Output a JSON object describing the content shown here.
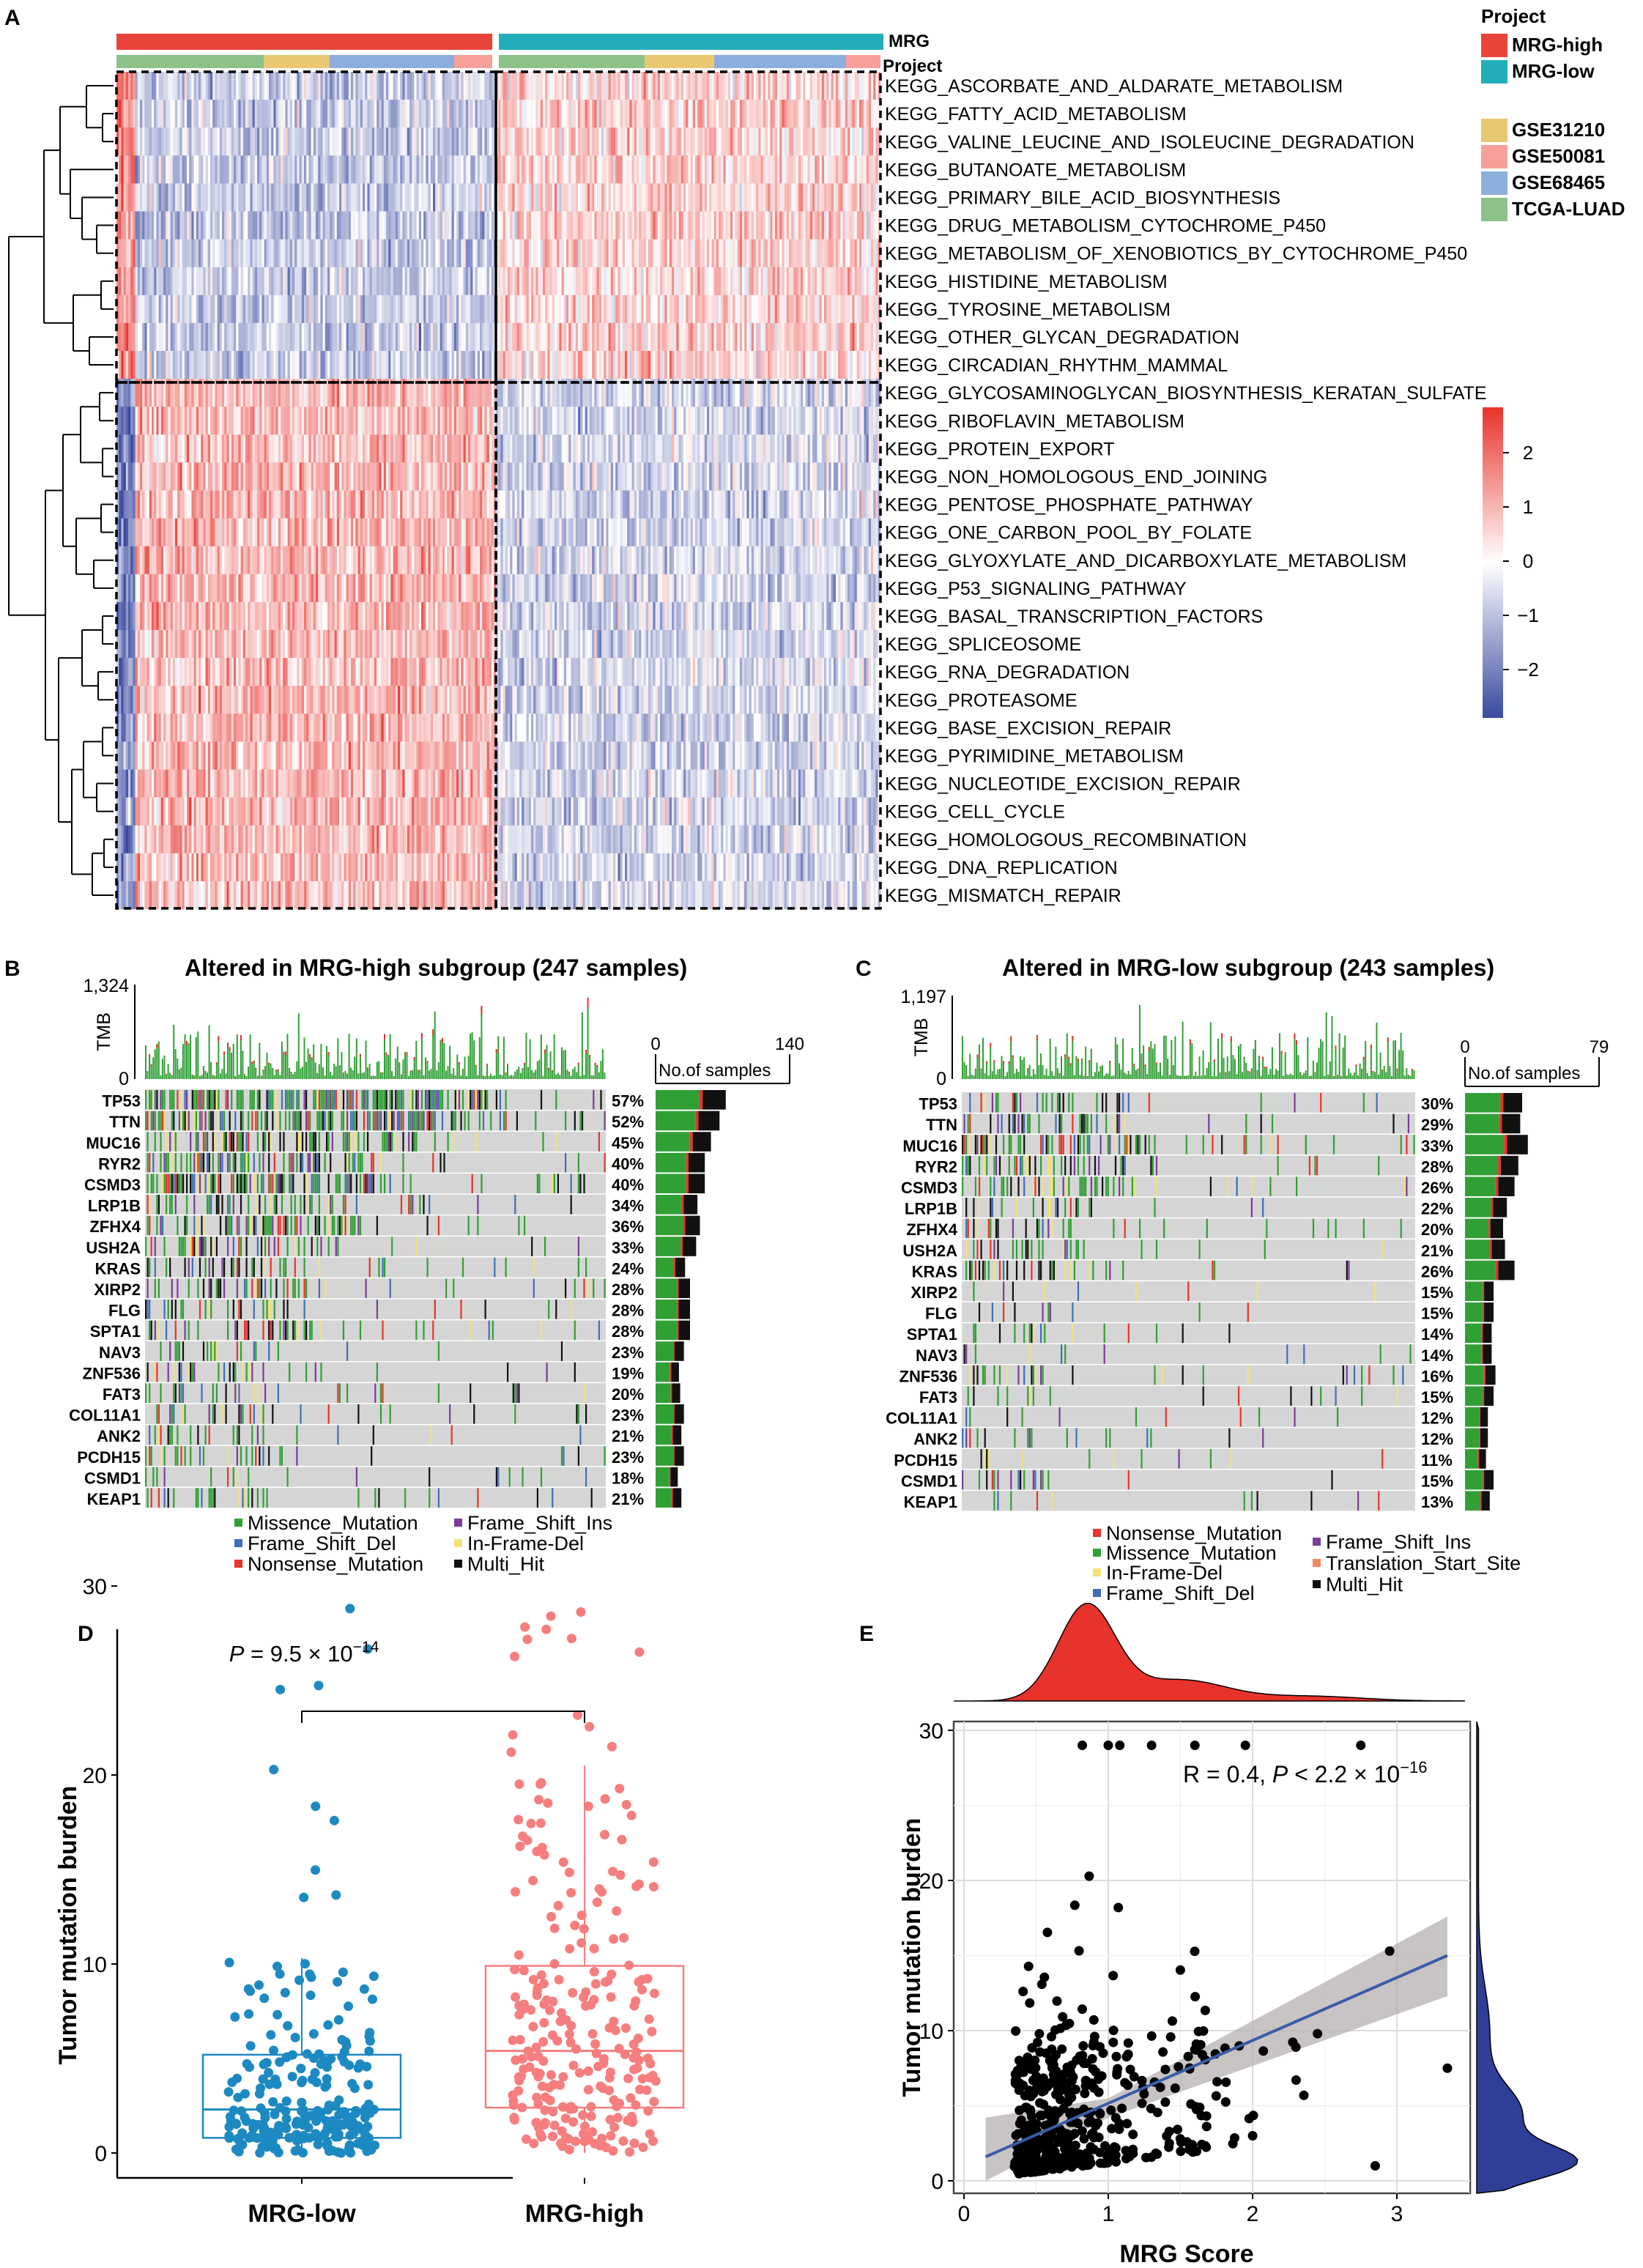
{
  "colors": {
    "mrg_high": "#e8443a",
    "mrg_low": "#22aeb9",
    "gse31210": "#e8c872",
    "gse50081": "#f7a09a",
    "gse68465": "#8caedd",
    "tcga_luad": "#8cc18a",
    "heat_red": "#e8332c",
    "heat_blue": "#3a4aa0",
    "missense": "#30a035",
    "frame_shift_del": "#3f6fb6",
    "nonsense": "#e8332c",
    "frame_shift_ins": "#7a3d99",
    "in_frame_del": "#f1e27a",
    "multi_hit": "#111111",
    "translation_start": "#f08a5d",
    "box_low": "#1d89c2",
    "box_high": "#f67e7f",
    "reg_line": "#3a5ca8",
    "density_top": "#e8332c",
    "density_right": "#2f3f97"
  },
  "chart_data": [
    {
      "panel": "A",
      "type": "heatmap",
      "title": "",
      "annotation_labels": [
        "MRG",
        "Project"
      ],
      "legend_title": "Project",
      "legend_groups": [
        "MRG-high",
        "MRG-low"
      ],
      "legend_projects": [
        "GSE31210",
        "GSE50081",
        "GSE68465",
        "TCGA-LUAD"
      ],
      "color_scale_ticks": [
        "2",
        "1",
        "0",
        "−1",
        "−2"
      ],
      "color_scale_values": [
        2,
        1,
        0,
        -1,
        -2
      ],
      "rows": [
        "KEGG_ASCORBATE_AND_ALDARATE_METABOLISM",
        "KEGG_FATTY_ACID_METABOLISM",
        "KEGG_VALINE_LEUCINE_AND_ISOLEUCINE_DEGRADATION",
        "KEGG_BUTANOATE_METABOLISM",
        "KEGG_PRIMARY_BILE_ACID_BIOSYNTHESIS",
        "KEGG_DRUG_METABOLISM_CYTOCHROME_P450",
        "KEGG_METABOLISM_OF_XENOBIOTICS_BY_CYTOCHROME_P450",
        "KEGG_HISTIDINE_METABOLISM",
        "KEGG_TYROSINE_METABOLISM",
        "KEGG_OTHER_GLYCAN_DEGRADATION",
        "KEGG_CIRCADIAN_RHYTHM_MAMMAL",
        "KEGG_GLYCOSAMINOGLYCAN_BIOSYNTHESIS_KERATAN_SULFATE",
        "KEGG_RIBOFLAVIN_METABOLISM",
        "KEGG_PROTEIN_EXPORT",
        "KEGG_NON_HOMOLOGOUS_END_JOINING",
        "KEGG_PENTOSE_PHOSPHATE_PATHWAY",
        "KEGG_ONE_CARBON_POOL_BY_FOLATE",
        "KEGG_GLYOXYLATE_AND_DICARBOXYLATE_METABOLISM",
        "KEGG_P53_SIGNALING_PATHWAY",
        "KEGG_BASAL_TRANSCRIPTION_FACTORS",
        "KEGG_SPLICEOSOME",
        "KEGG_RNA_DEGRADATION",
        "KEGG_PROTEASOME",
        "KEGG_BASE_EXCISION_REPAIR",
        "KEGG_PYRIMIDINE_METABOLISM",
        "KEGG_NUCLEOTIDE_EXCISION_REPAIR",
        "KEGG_CELL_CYCLE",
        "KEGG_HOMOLOGOUS_RECOMBINATION",
        "KEGG_DNA_REPLICATION",
        "KEGG_MISMATCH_REPAIR"
      ],
      "row_cluster_split": 11,
      "column_groups": [
        "MRG-high",
        "MRG-low"
      ],
      "pattern": "rows 1-11: lower in MRG-high, higher in MRG-low; rows 12-30: higher in MRG-high, lower in MRG-low"
    },
    {
      "panel": "B",
      "type": "oncoplot",
      "title": "Altered in MRG-high subgroup (247 samples)",
      "tmb_label": "TMB",
      "tmb_max": "1,324",
      "tmb_min": "0",
      "bar_axis_min": "0",
      "bar_axis_max": "140",
      "bar_axis_label": "No.of samples",
      "genes": [
        "TP53",
        "TTN",
        "MUC16",
        "RYR2",
        "CSMD3",
        "LRP1B",
        "ZFHX4",
        "USH2A",
        "KRAS",
        "XIRP2",
        "FLG",
        "SPTA1",
        "NAV3",
        "ZNF536",
        "FAT3",
        "COL11A1",
        "ANK2",
        "PCDH15",
        "CSMD1",
        "KEAP1"
      ],
      "percent_labels": [
        "57%",
        "52%",
        "45%",
        "40%",
        "40%",
        "34%",
        "36%",
        "33%",
        "24%",
        "28%",
        "28%",
        "28%",
        "23%",
        "19%",
        "20%",
        "23%",
        "21%",
        "23%",
        "18%",
        "21%"
      ],
      "percent_values": [
        57,
        52,
        45,
        40,
        40,
        34,
        36,
        33,
        24,
        28,
        28,
        28,
        23,
        19,
        20,
        23,
        21,
        23,
        18,
        21
      ],
      "legend": [
        "Missence_Mutation",
        "Frame_Shift_Ins",
        "Frame_Shift_Del",
        "In-Frame-Del",
        "Nonsense_Mutation",
        "Multi_Hit"
      ]
    },
    {
      "panel": "C",
      "type": "oncoplot",
      "title": "Altered in MRG-low subgroup (243 samples)",
      "tmb_label": "TMB",
      "tmb_max": "1,197",
      "tmb_min": "0",
      "bar_axis_min": "0",
      "bar_axis_max": "79",
      "bar_axis_label": "No.of samples",
      "genes": [
        "TP53",
        "TTN",
        "MUC16",
        "RYR2",
        "CSMD3",
        "LRP1B",
        "ZFHX4",
        "USH2A",
        "KRAS",
        "XIRP2",
        "FLG",
        "SPTA1",
        "NAV3",
        "ZNF536",
        "FAT3",
        "COL11A1",
        "ANK2",
        "PCDH15",
        "CSMD1",
        "KEAP1"
      ],
      "percent_labels": [
        "30%",
        "29%",
        "33%",
        "28%",
        "26%",
        "22%",
        "20%",
        "21%",
        "26%",
        "15%",
        "15%",
        "14%",
        "14%",
        "16%",
        "15%",
        "12%",
        "12%",
        "11%",
        "15%",
        "13%"
      ],
      "percent_values": [
        30,
        29,
        33,
        28,
        26,
        22,
        20,
        21,
        26,
        15,
        15,
        14,
        14,
        16,
        15,
        12,
        12,
        11,
        15,
        13
      ],
      "legend": [
        "Nonsense_Mutation",
        "Frame_Shift_Ins",
        "Missence_Mutation",
        "Translation_Start_Site",
        "In-Frame-Del",
        "Multi_Hit",
        "Frame_Shift_Del"
      ]
    },
    {
      "panel": "D",
      "type": "box",
      "ylabel": "Tumor mutation burden",
      "categories": [
        "MRG-low",
        "MRG-high"
      ],
      "ylim": [
        0,
        30
      ],
      "yticks": [
        "0",
        "10",
        "20",
        "30"
      ],
      "ytick_values": [
        0,
        10,
        20,
        30
      ],
      "p_label_prefix": "P",
      "p_label_value": " = 9.5 × 10",
      "p_label_exp": "−14",
      "boxes": [
        {
          "name": "MRG-low",
          "min": 0,
          "q1": 0.8,
          "median": 2.3,
          "q3": 5.2,
          "max": 10.3
        },
        {
          "name": "MRG-high",
          "min": 0,
          "q1": 2.4,
          "median": 5.4,
          "q3": 9.9,
          "max": 20.5
        }
      ]
    },
    {
      "panel": "E",
      "type": "scatter",
      "xlabel": "MRG Score",
      "ylabel": "Tumor mutation burden",
      "xlim": [
        0,
        3.4
      ],
      "ylim": [
        0,
        30
      ],
      "xticks": [
        "0",
        "1",
        "2",
        "3"
      ],
      "xtick_values": [
        0,
        1,
        2,
        3
      ],
      "yticks": [
        "0",
        "10",
        "20",
        "30"
      ],
      "ytick_values": [
        0,
        10,
        20,
        30
      ],
      "annotation_prefix": "R = 0.4, ",
      "annotation_p": "P",
      "annotation_mid": " < 2.2 × 10",
      "annotation_exp": "−16",
      "fit": {
        "x0": 0.15,
        "y0": 1.6,
        "x1": 3.35,
        "y1": 15.0
      },
      "highlight_points": [
        {
          "x": 0.82,
          "y": 29
        },
        {
          "x": 1.0,
          "y": 29
        },
        {
          "x": 1.08,
          "y": 29
        },
        {
          "x": 1.3,
          "y": 29
        },
        {
          "x": 1.6,
          "y": 29
        },
        {
          "x": 1.95,
          "y": 29
        },
        {
          "x": 2.75,
          "y": 29
        },
        {
          "x": 3.35,
          "y": 7.5
        },
        {
          "x": 2.3,
          "y": 8.9
        },
        {
          "x": 2.45,
          "y": 9.8
        },
        {
          "x": 2.85,
          "y": 1.0
        },
        {
          "x": 2.95,
          "y": 15.3
        }
      ]
    }
  ],
  "panel_labels": [
    "A",
    "B",
    "C",
    "D",
    "E"
  ]
}
